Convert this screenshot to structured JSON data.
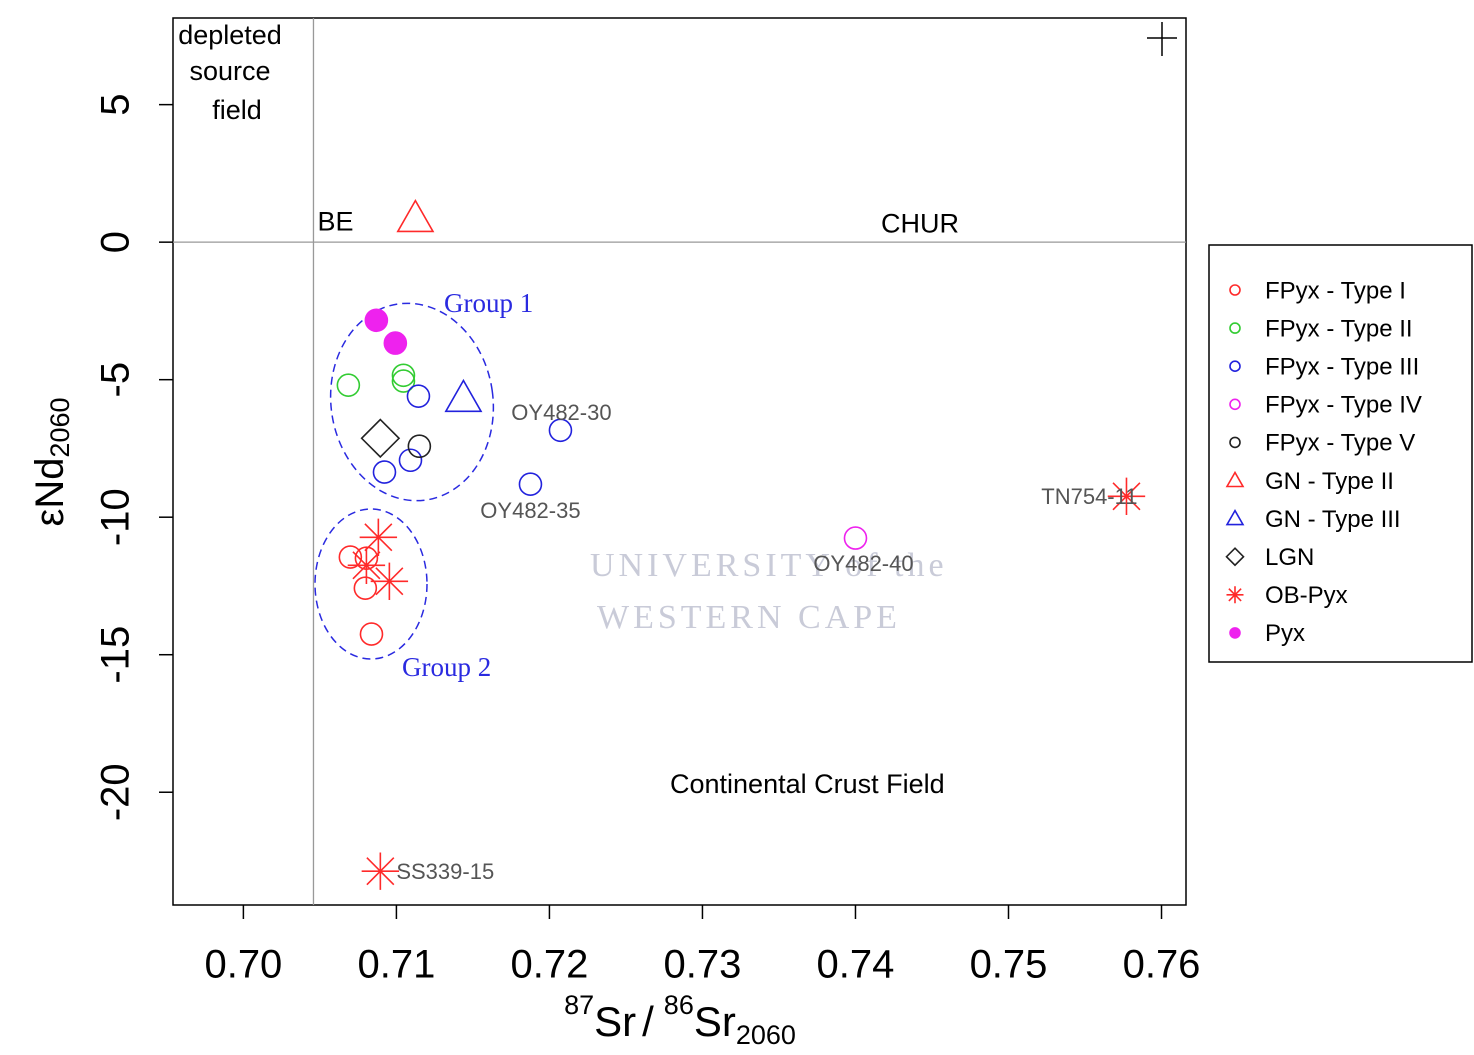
{
  "chart_data": {
    "type": "scatter",
    "x_label": {
      "sup1": "87",
      "main1": "Sr",
      "slash": "/",
      "sup2": "86",
      "main2": "Sr",
      "sub": "2060"
    },
    "y_label": {
      "main": "εNd",
      "sub": "2060"
    },
    "xlim": [
      0.6954,
      0.7616
    ],
    "ylim": [
      -24.1,
      8.15
    ],
    "xticks": [
      {
        "value": 0.7,
        "label": "0.70"
      },
      0.71,
      0.72,
      0.73,
      0.74,
      0.75,
      0.76
    ],
    "yticks": [
      5,
      0,
      -5,
      -10,
      -15,
      -20
    ],
    "reference_lines": [
      {
        "axis": "x",
        "value": 0.70458,
        "label": "BE"
      },
      {
        "axis": "y",
        "value": 0,
        "label": "CHUR"
      }
    ],
    "annotations": {
      "depleted": [
        "depleted",
        "source",
        "field"
      ],
      "group1": "Group 1",
      "group2": "Group 2",
      "crust": "Continental Crust Field",
      "watermark": [
        "UNIVERSITY of the",
        "WESTERN CAPE"
      ]
    },
    "legend": "right",
    "series": [
      {
        "name": "FPyx - Type I",
        "color": "#ff2a2a",
        "marker": "circle",
        "x": [
          0.70699,
          0.70804,
          0.70797,
          0.70837
        ],
        "y": [
          -11.45,
          -11.49,
          -12.58,
          -14.25
        ]
      },
      {
        "name": "FPyx - Type II",
        "color": "#33cc33",
        "marker": "circle",
        "x": [
          0.70686,
          0.71046,
          0.71046
        ],
        "y": [
          -5.2,
          -4.84,
          -5.05
        ]
      },
      {
        "name": "FPyx - Type III",
        "color": "#2222dd",
        "marker": "circle",
        "x": [
          0.71144,
          0.70922,
          0.71092,
          0.72072,
          0.71876
        ],
        "y": [
          -5.6,
          -8.36,
          -7.93,
          -6.84,
          -8.8
        ],
        "labels": [
          null,
          null,
          null,
          "OY482-30",
          "OY482-35"
        ]
      },
      {
        "name": "FPyx - Type IV",
        "color": "#ee22ee",
        "marker": "circle",
        "x": [
          0.74
        ],
        "y": [
          -10.76
        ],
        "labels": [
          "OY482-40"
        ]
      },
      {
        "name": "FPyx - Type V",
        "color": "#222222",
        "marker": "circle",
        "x": [
          0.7115
        ],
        "y": [
          -7.42
        ]
      },
      {
        "name": "GN - Type II",
        "color": "#ff2a2a",
        "marker": "triangle",
        "x": [
          0.71124
        ],
        "y": [
          0.87
        ]
      },
      {
        "name": "GN - Type III",
        "color": "#2222dd",
        "marker": "triangle",
        "x": [
          0.71438
        ],
        "y": [
          -5.67
        ]
      },
      {
        "name": "LGN",
        "color": "#222222",
        "marker": "diamond",
        "x": [
          0.70895
        ],
        "y": [
          -7.13
        ]
      },
      {
        "name": "OB-Pyx",
        "color": "#ff2a2a",
        "marker": "star",
        "x": [
          0.70882,
          0.70804,
          0.70954,
          0.75771,
          0.70895
        ],
        "y": [
          -10.73,
          -11.75,
          -12.33,
          -9.24,
          -22.87
        ],
        "labels": [
          null,
          null,
          null,
          "TN754-11",
          "SS339-15"
        ]
      },
      {
        "name": "Pyx",
        "color": "#ee22ee",
        "marker": "filled-circle",
        "x": [
          0.70869,
          0.70993
        ],
        "y": [
          -2.84,
          -3.67
        ]
      }
    ]
  }
}
